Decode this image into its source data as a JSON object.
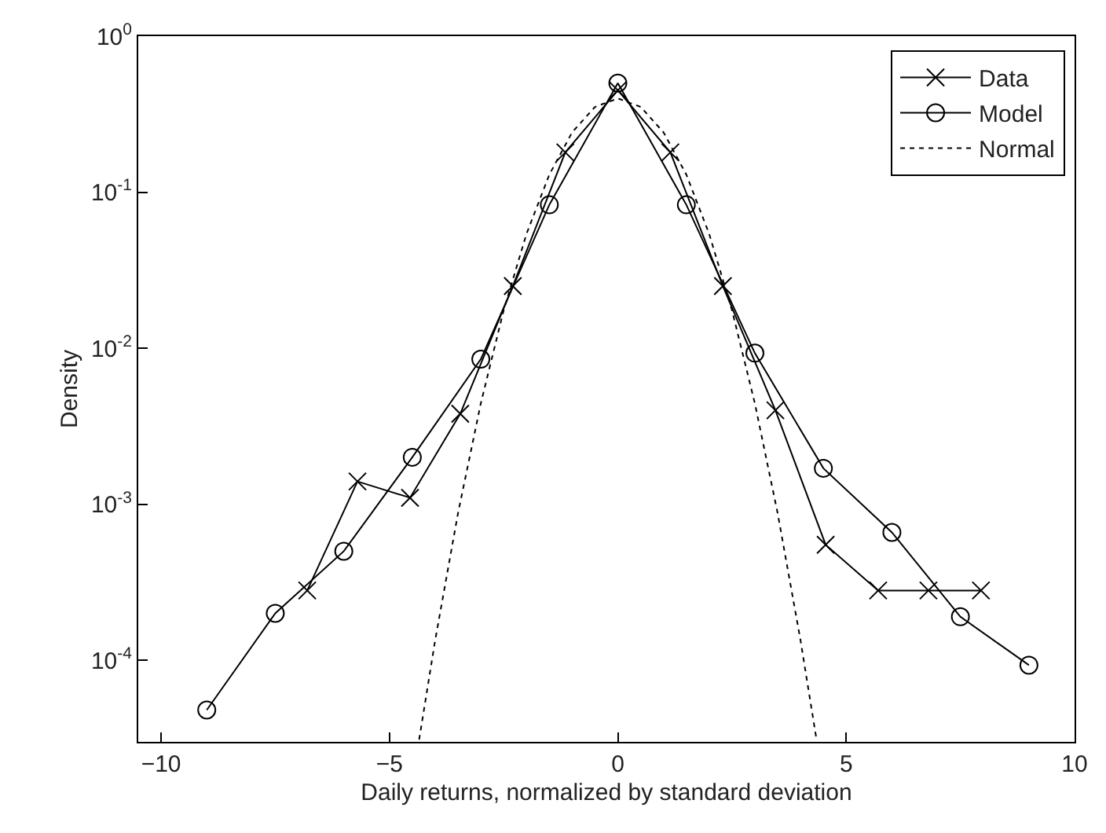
{
  "chart_data": {
    "type": "line",
    "xlabel": "Daily returns, normalized by standard deviation",
    "ylabel": "Density",
    "log": "y",
    "legend": "top right",
    "xlim": [
      -10.5,
      10
    ],
    "xticks": [
      -10,
      -5,
      0,
      5,
      10
    ],
    "ylim": [
      3e-05,
      1
    ],
    "yticks": [
      {
        "value": 1,
        "label": "10$^{0}$"
      },
      {
        "value": 0.1,
        "label": "10$^{-1}$"
      },
      {
        "value": 0.01,
        "label": "10$^{-2}$"
      },
      {
        "value": 0.001,
        "label": "10$^{-3}$"
      },
      {
        "value": 0.0001,
        "label": "10$^{-4}$"
      }
    ],
    "series": [
      {
        "name": "Data",
        "color": "#000000",
        "marker": "cross",
        "line_style": "solid",
        "x": [
          -6.8,
          -5.7,
          -4.55,
          -3.45,
          -2.3,
          -1.15,
          0,
          1.15,
          2.3,
          3.45,
          4.55,
          5.7,
          6.8,
          7.95
        ],
        "values": [
          0.00028,
          0.0014,
          0.0011,
          0.0038,
          0.025,
          0.18,
          0.45,
          0.18,
          0.025,
          0.004,
          0.00055,
          0.00028,
          0.00028,
          0.00028
        ]
      },
      {
        "name": "Model",
        "color": "#000000",
        "marker": "circle",
        "line_style": "solid",
        "x": [
          -9,
          -7.5,
          -6,
          -4.5,
          -3,
          -1.5,
          0,
          1.5,
          3,
          4.5,
          6,
          7.5,
          9
        ],
        "values": [
          4.8e-05,
          0.0002,
          0.0005,
          0.002,
          0.0085,
          0.083,
          0.5,
          0.083,
          0.0093,
          0.0017,
          0.00066,
          0.00019,
          9.3e-05
        ]
      },
      {
        "name": "Normal",
        "color": "#000000",
        "marker": "none",
        "line_style": "dotted",
        "x": [
          -4.35,
          -4,
          -3.5,
          -3,
          -2.5,
          -2,
          -1.5,
          -1,
          -0.5,
          0,
          0.5,
          1,
          1.5,
          2,
          2.5,
          3,
          3.5,
          4,
          4.35
        ],
        "values": [
          3.1e-05,
          0.000134,
          0.000873,
          0.00443,
          0.0175,
          0.054,
          0.1295,
          0.242,
          0.352,
          0.399,
          0.352,
          0.242,
          0.1295,
          0.054,
          0.0175,
          0.00443,
          0.000873,
          0.000134,
          3.1e-05
        ]
      }
    ]
  }
}
